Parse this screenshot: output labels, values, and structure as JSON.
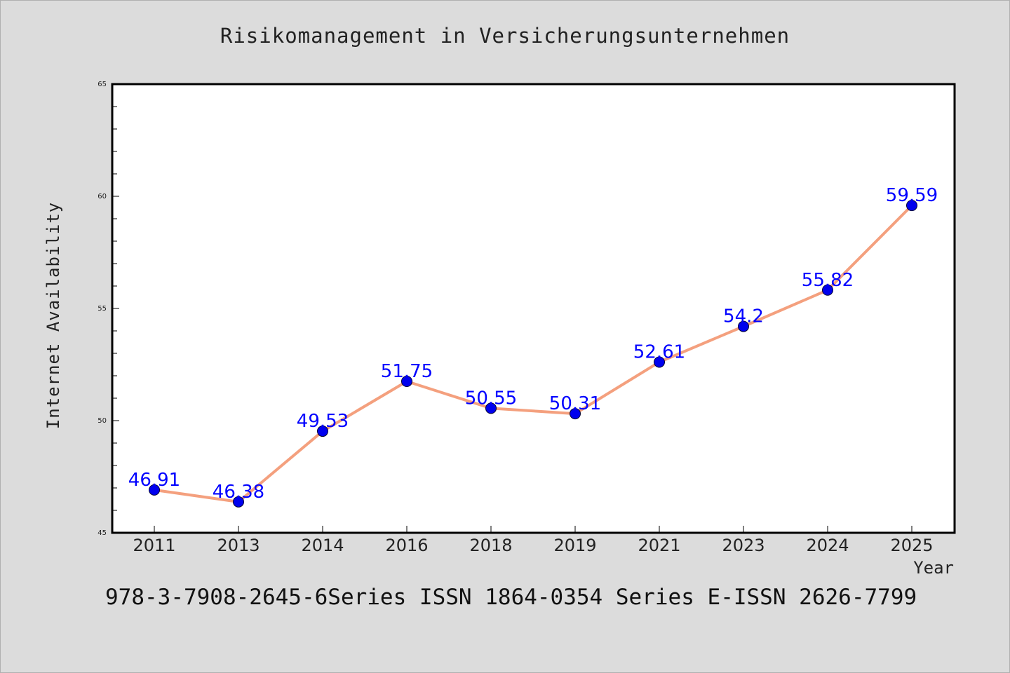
{
  "chart_data": {
    "type": "line",
    "title": "Risikomanagement in Versicherungsunternehmen",
    "xlabel": "Year",
    "ylabel": "Internet Availability",
    "categories": [
      "2011",
      "2013",
      "2014",
      "2016",
      "2018",
      "2019",
      "2021",
      "2023",
      "2024",
      "2025"
    ],
    "series": [
      {
        "values": [
          46.91,
          46.38,
          49.53,
          51.75,
          50.55,
          50.31,
          52.61,
          54.2,
          55.82,
          59.59
        ],
        "data_labels": [
          "46.91",
          "46.38",
          "49.53",
          "51.75",
          "50.55",
          "50.31",
          "52.61",
          "54.2",
          "55.82",
          "59.59"
        ],
        "line_color": "#f4a07e",
        "marker_color": "#0000ee"
      }
    ],
    "ylim": [
      45,
      65
    ],
    "yticks": [
      "45",
      "50",
      "55",
      "60",
      "65"
    ],
    "grid": false,
    "label_color": "#0000ff"
  },
  "footer_text": "978-3-7908-2645-6Series ISSN 1864-0354 Series E-ISSN 2626-7799"
}
